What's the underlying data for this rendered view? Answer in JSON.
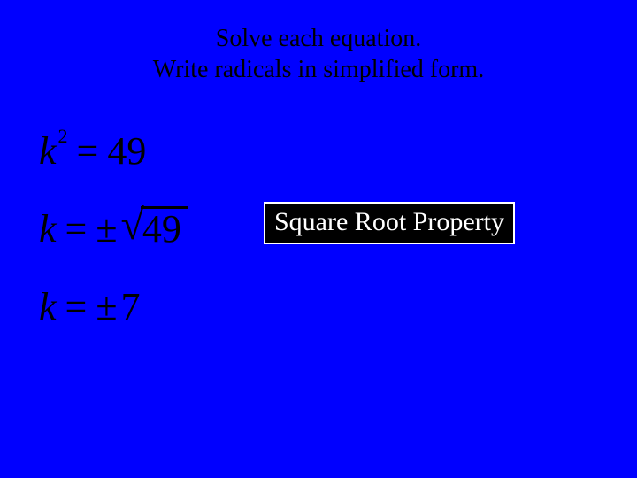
{
  "background_color": "#0000ff",
  "text_color": "#000000",
  "heading": {
    "line1": "Solve each equation.",
    "line2": "Write radicals in simplified form.",
    "fontsize": 28,
    "font_family": "Times New Roman",
    "color": "#000000"
  },
  "equations": {
    "fontsize": 44,
    "color": "#000000",
    "font_style": "italic",
    "eq1": {
      "var": "k",
      "exp": "2",
      "op": "=",
      "rhs": "49"
    },
    "eq2": {
      "var": "k",
      "op": "=",
      "pm": "±",
      "rad_sign": "√",
      "rad_body": "49"
    },
    "eq3": {
      "var": "k",
      "op": "=",
      "pm": "±",
      "rhs": "7"
    }
  },
  "property_box": {
    "label": "Square Root Property",
    "background_color": "#000000",
    "text_color": "#ffffff",
    "border_color": "#ffffff",
    "fontsize": 30
  }
}
